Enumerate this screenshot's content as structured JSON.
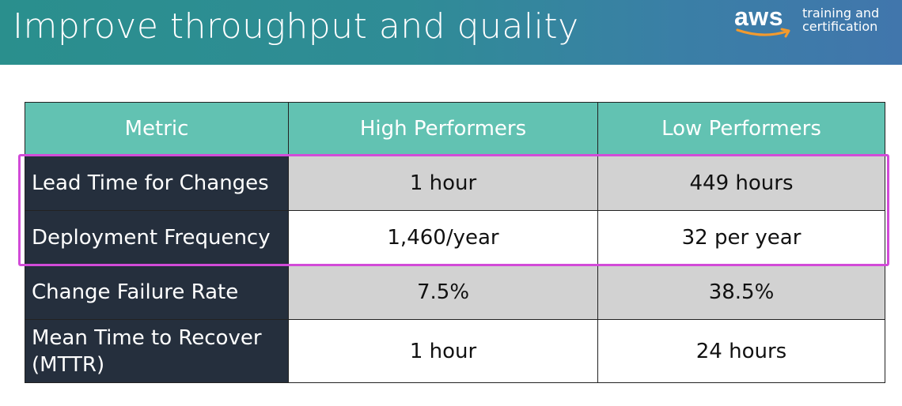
{
  "slide": {
    "title": "Improve throughput and quality",
    "logo": {
      "mark": "aws",
      "line1": "training and",
      "line2": "certification",
      "smile_color": "#f29a2e"
    }
  },
  "table": {
    "headers": [
      "Metric",
      "High Performers",
      "Low Performers"
    ],
    "rows": [
      {
        "metric": "Lead Time for Changes",
        "high": "1 hour",
        "low": "449 hours",
        "highlighted": true
      },
      {
        "metric": "Deployment Frequency",
        "high": "1,460/year",
        "low": "32 per year",
        "highlighted": true
      },
      {
        "metric": "Change Failure Rate",
        "high": "7.5%",
        "low": "38.5%",
        "highlighted": false
      },
      {
        "metric": "Mean Time to Recover (MTTR)",
        "high": "1 hour",
        "low": "24 hours",
        "highlighted": false
      }
    ]
  },
  "colors": {
    "header_gradient_start": "#2a8f8d",
    "header_gradient_end": "#4176ac",
    "table_header": "#62c2b2",
    "metric_column": "#252f3d",
    "grey_row": "#d2d2d2",
    "highlight_box": "#d24bd8"
  }
}
